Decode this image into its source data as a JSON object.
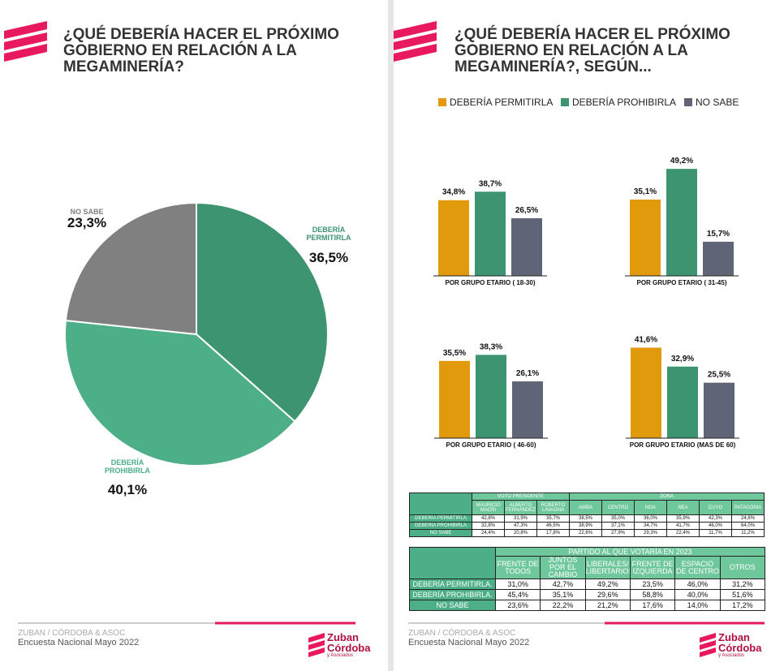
{
  "panels": [
    {
      "title_lines": [
        "¿QUÉ DEBERÍA HACER EL PRÓXIMO",
        "GOBIERNO EN RELACIÓN A LA",
        "MEGAMINERÍA?"
      ],
      "footer": [
        "ZUBAN / CÓRDOBA & ASOC",
        "Encuesta Nacional Mayo 2022"
      ],
      "logo": [
        "Zuban",
        "Córdoba",
        "y Asociados"
      ]
    },
    {
      "title_lines": [
        "¿QUÉ DEBERÍA HACER EL PRÓXIMO",
        "GOBIERNO EN RELACIÓN A LA",
        "MEGAMINERÍA?, SEGÚN..."
      ],
      "footer": [
        "ZUBAN / CÓRDOBA & ASOC",
        "Encuesta Nacional Mayo 2022"
      ],
      "logo": [
        "Zuban",
        "Córdoba",
        "y Asociados"
      ]
    }
  ],
  "legend": [
    {
      "name": "DEBERÍA PERMITIRLA",
      "color": "#e09a0b"
    },
    {
      "name": "DEBERÍA PROHIBIRLA",
      "color": "#3d9470"
    },
    {
      "name": "NO SABE",
      "color": "#5f6577"
    }
  ],
  "chart_data": [
    {
      "type": "pie",
      "categories": [
        "DEBERÍA PERMITIRLA",
        "DEBERÍA PROHIBIRLA",
        "NO SABE"
      ],
      "values": [
        36.5,
        40.1,
        23.3
      ],
      "value_labels": [
        "36,5%",
        "40,1%",
        "23,3%"
      ],
      "colors": [
        "#3d9470",
        "#4caf88",
        "#808080"
      ]
    },
    {
      "type": "bar",
      "title": "POR GRUPO ETARIO ( 18-30)",
      "values": [
        34.8,
        38.7,
        26.5
      ],
      "value_labels": [
        "34,8%",
        "38,7%",
        "26,5%"
      ],
      "colors": [
        "#e09a0b",
        "#3d9470",
        "#5f6577"
      ]
    },
    {
      "type": "bar",
      "title": "POR GRUPO ETARIO ( 31-45)",
      "values": [
        35.1,
        49.2,
        15.7
      ],
      "value_labels": [
        "35,1%",
        "49,2%",
        "15,7%"
      ],
      "colors": [
        "#e09a0b",
        "#3d9470",
        "#5f6577"
      ]
    },
    {
      "type": "bar",
      "title": "POR GRUPO ETARIO ( 46-60)",
      "values": [
        35.5,
        38.3,
        26.1
      ],
      "value_labels": [
        "35,5%",
        "38,3%",
        "26,1%"
      ],
      "colors": [
        "#e09a0b",
        "#3d9470",
        "#5f6577"
      ]
    },
    {
      "type": "bar",
      "title": "POR GRUPO ETARIO (MAS DE 60)",
      "values": [
        41.6,
        32.9,
        25.5
      ],
      "value_labels": [
        "41,6%",
        "32,9%",
        "25,5%"
      ],
      "colors": [
        "#e09a0b",
        "#3d9470",
        "#5f6577"
      ]
    }
  ],
  "tables": [
    {
      "groups": [
        {
          "label": "VOTO PRESIDENTE",
          "columns": [
            "MAURICIO MACRI",
            "ALBERTO FERNÁNDEZ",
            "ROBERTO LAVAGNA"
          ]
        },
        {
          "label": "ZONA",
          "columns": [
            "AMBA",
            "CENTRO",
            "NOA",
            "NEA",
            "CUYO",
            "PATAGONIA"
          ]
        }
      ],
      "rows": [
        {
          "label": "DEBERÍA PERMITIRLA",
          "cells": [
            "42,8%",
            "31,9%",
            "35,7%",
            "38,5%",
            "35,0%",
            "36,0%",
            "35,9%",
            "42,3%",
            "24,8%"
          ]
        },
        {
          "label": "DEBERÍA PROHIBIRLA",
          "cells": [
            "32,8%",
            "47,3%",
            "46,5%",
            "38,9%",
            "37,1%",
            "34,7%",
            "41,7%",
            "46,0%",
            "64,0%"
          ]
        },
        {
          "label": "NO SABE",
          "cells": [
            "24,4%",
            "20,8%",
            "17,8%",
            "22,6%",
            "27,9%",
            "29,3%",
            "22,4%",
            "11,7%",
            "11,2%"
          ]
        }
      ]
    },
    {
      "groups": [
        {
          "label": "PARTIDO AL QUE VOTARÍA EN 2023",
          "columns": [
            "FRENTE DE TODOS",
            "JUNTOS POR EL CAMBIO",
            "LIBERALES/ LIBERTARIOS",
            "FRENTE DE IZQUIERDA",
            "ESPACIO DE CENTRO",
            "OTROS"
          ]
        }
      ],
      "rows": [
        {
          "label": "DEBERÍA PERMITIRLA.",
          "cells": [
            "31,0%",
            "42,7%",
            "49,2%",
            "23,5%",
            "46,0%",
            "31,2%"
          ]
        },
        {
          "label": "DEBERÍA PROHIBIRLA.",
          "cells": [
            "45,4%",
            "35,1%",
            "29,6%",
            "58,8%",
            "40,0%",
            "51,6%"
          ]
        },
        {
          "label": "NO SABE",
          "cells": [
            "23,6%",
            "22,2%",
            "21,2%",
            "17,6%",
            "14,0%",
            "17,2%"
          ]
        }
      ]
    }
  ]
}
